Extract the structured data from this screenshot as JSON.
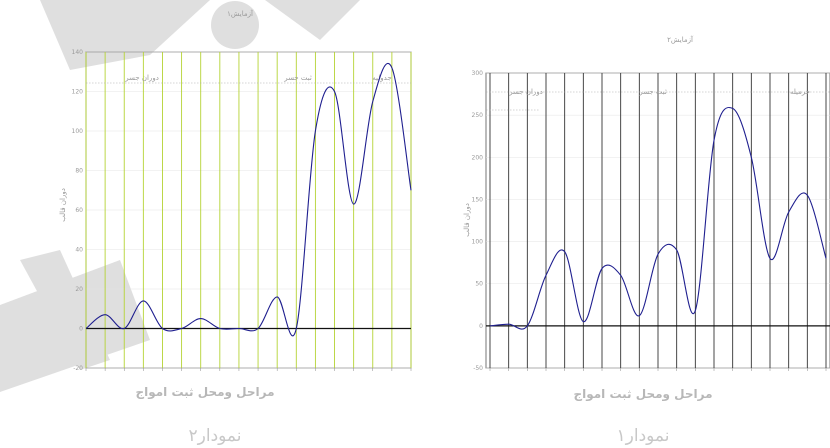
{
  "charts": [
    {
      "caption": "نمودار۲",
      "chart_data": {
        "type": "line",
        "title": "آزمایش۱",
        "xlabel": "مراحل ومحل ثبت امواج",
        "ylabel": "دوران قالب",
        "ylim": [
          -20,
          140
        ],
        "yticks": [
          -20,
          0,
          20,
          40,
          60,
          80,
          100,
          120,
          140
        ],
        "grid": true,
        "vline_color": "#b5d334",
        "line_color": "#1f1f8f",
        "annotations": [
          "دوران جسر",
          "ثبت جسر",
          "جدولیه"
        ],
        "series": [
          {
            "x": [
              0,
              1,
              2,
              3,
              4,
              5,
              6,
              7,
              8,
              9,
              10,
              11,
              12,
              13,
              14,
              15,
              16,
              17
            ],
            "values": [
              0,
              7,
              0,
              14,
              0,
              0,
              5,
              0,
              0,
              0,
              16,
              0,
              100,
              120,
              63,
              115,
              132,
              70
            ]
          }
        ]
      }
    },
    {
      "caption": "نمودار۱",
      "chart_data": {
        "type": "line",
        "title": "آزمایش۲",
        "xlabel": "مراحل ومحل ثبت امواج",
        "ylabel": "دوران قالب",
        "ylim": [
          -50,
          300
        ],
        "yticks": [
          -50,
          0,
          50,
          100,
          150,
          200,
          250,
          300
        ],
        "grid": true,
        "vline_color": "#333333",
        "line_color": "#1f1f8f",
        "annotations": [
          "دوران جسر",
          "ثبت جسر",
          "حرمیله"
        ],
        "series": [
          {
            "x": [
              0,
              1,
              2,
              3,
              4,
              5,
              6,
              7,
              8,
              9,
              10,
              11,
              12,
              13,
              14,
              15,
              16,
              17,
              18
            ],
            "values": [
              0,
              2,
              0,
              60,
              88,
              5,
              68,
              60,
              12,
              85,
              90,
              18,
              220,
              258,
              200,
              80,
              135,
              155,
              80
            ]
          }
        ]
      }
    }
  ]
}
